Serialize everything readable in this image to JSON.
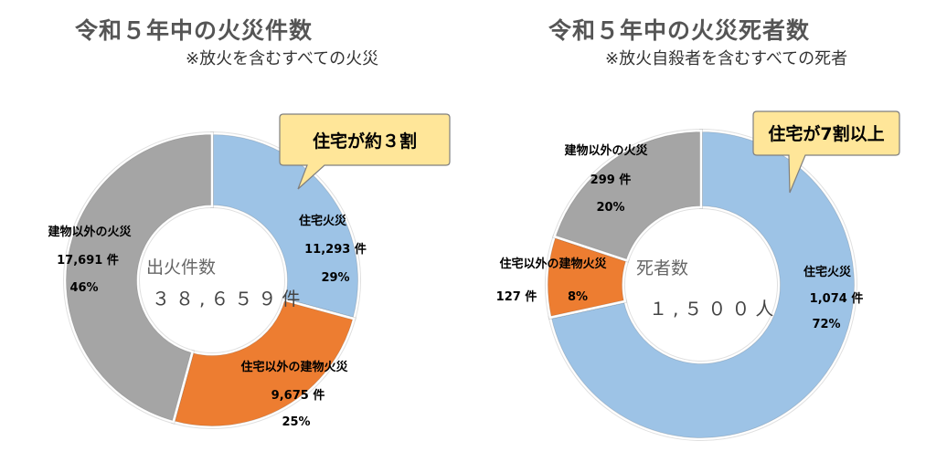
{
  "charts": [
    {
      "title": "令和５年中の火災件数",
      "subtitle": "※放火を含むすべての火災",
      "center_label": "出火件数",
      "center_value": "３８,６５９件",
      "callout": "住宅が約３割",
      "colors": {
        "housing": "#9DC3E6",
        "other_building": "#ED7D31",
        "non_building": "#A5A5A5"
      },
      "slices": [
        {
          "name": "住宅火災",
          "value_text": "11,293 件",
          "pct_text": "29%"
        },
        {
          "name": "住宅以外の建物火災",
          "value_text": "9,675 件",
          "pct_text": "25%"
        },
        {
          "name": "建物以外の火災",
          "value_text": "17,691 件",
          "pct_text": "46%"
        }
      ]
    },
    {
      "title": "令和５年中の火災死者数",
      "subtitle": "※放火自殺者を含むすべての死者",
      "center_label": "死者数",
      "center_value": "１,５００人",
      "callout": "住宅が7割以上",
      "colors": {
        "housing": "#9DC3E6",
        "other_building": "#ED7D31",
        "non_building": "#A5A5A5"
      },
      "slices": [
        {
          "name": "住宅火災",
          "value_text": "1,074 件",
          "pct_text": "72%"
        },
        {
          "name": "住宅以外の建物火災",
          "value_text": "127 件",
          "pct_text": "8%"
        },
        {
          "name": "建物以外の火災",
          "value_text": "299 件",
          "pct_text": "20%"
        }
      ]
    }
  ],
  "chart_data": [
    {
      "type": "pie",
      "title": "令和５年中の火災件数",
      "subtitle": "※放火を含むすべての火災",
      "categories": [
        "住宅火災",
        "住宅以外の建物火災",
        "建物以外の火災"
      ],
      "values": [
        11293,
        9675,
        17691
      ],
      "percent": [
        29,
        25,
        46
      ],
      "total": 38659
    },
    {
      "type": "pie",
      "title": "令和５年中の火災死者数",
      "subtitle": "※放火自殺者を含むすべての死者",
      "categories": [
        "住宅火災",
        "住宅以外の建物火災",
        "建物以外の火災"
      ],
      "values": [
        1074,
        127,
        299
      ],
      "percent": [
        72,
        8,
        20
      ],
      "total": 1500
    }
  ]
}
